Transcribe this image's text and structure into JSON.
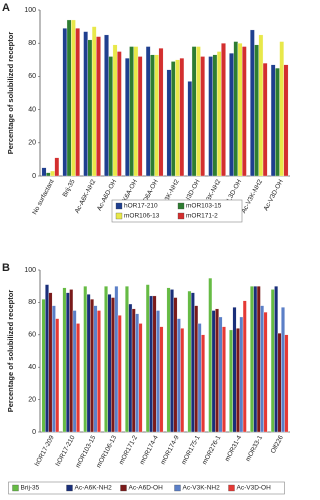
{
  "chart_data": [
    {
      "type": "bar",
      "panel_label": "A",
      "ylabel": "Percentage of solubilized receptor",
      "categories": [
        "No surfactant",
        "Brij-35",
        "Ac-A6K-NH2",
        "Ac-A6D-OH",
        "Ac-K6A-OH",
        "Ac-D6A-OH",
        "Ac-I3K-NH2",
        "Ac-I3D-OH",
        "Ac-L3K-NH2",
        "Ac-L3D-OH",
        "Ac-V3K-NH2",
        "Ac-V3D-OH"
      ],
      "series": [
        {
          "name": "hOR17-210",
          "color": "#1f3f8f",
          "values": [
            5,
            89,
            87,
            85,
            71,
            78,
            64,
            57,
            72,
            74,
            88,
            67
          ]
        },
        {
          "name": "mOR103-15",
          "color": "#2e7d32",
          "values": [
            2,
            94,
            82,
            72,
            78,
            73,
            69,
            78,
            73,
            81,
            79,
            65
          ]
        },
        {
          "name": "mOR106-13",
          "color": "#e8e84a",
          "values": [
            3,
            94,
            90,
            79,
            78,
            73,
            70,
            78,
            75,
            80,
            85,
            81
          ]
        },
        {
          "name": "mOR171-2",
          "color": "#d32f2f",
          "values": [
            11,
            89,
            84,
            75,
            72,
            77,
            71,
            72,
            80,
            78,
            68,
            67
          ]
        }
      ],
      "ylim": [
        0,
        100
      ],
      "yticks": [
        0,
        20,
        40,
        60,
        80,
        100
      ],
      "grid": false,
      "legend": "bottom"
    },
    {
      "type": "bar",
      "panel_label": "B",
      "ylabel": "Percentage of solubilized receptor",
      "categories": [
        "hOR17-209",
        "hOR17-210",
        "mOR103-15",
        "mOR106-13",
        "mOR171-2",
        "mOR174-4",
        "mOR174-9",
        "mOR175-1",
        "mOR276-1",
        "mOR31-4",
        "mOR33-1",
        "Olf226"
      ],
      "series": [
        {
          "name": "Brij-35",
          "color": "#66bb44",
          "values": [
            82,
            89,
            90,
            90,
            90,
            91,
            89,
            87,
            95,
            63,
            90,
            88
          ]
        },
        {
          "name": "Ac-A6K-NH2",
          "color": "#1a2f7a",
          "values": [
            91,
            86,
            85,
            85,
            79,
            84,
            88,
            86,
            75,
            77,
            90,
            90
          ]
        },
        {
          "name": "Ac-A6D-OH",
          "color": "#7a1a1a",
          "values": [
            86,
            88,
            82,
            83,
            76,
            84,
            83,
            78,
            76,
            64,
            90,
            61
          ]
        },
        {
          "name": "Ac-V3K-NH2",
          "color": "#5b7fc7",
          "values": [
            78,
            75,
            78,
            90,
            73,
            75,
            70,
            67,
            71,
            71,
            78,
            77
          ]
        },
        {
          "name": "Ac-V3D-OH",
          "color": "#e53935",
          "values": [
            70,
            67,
            75,
            72,
            67,
            65,
            64,
            60,
            65,
            81,
            74,
            60
          ]
        }
      ],
      "ylim": [
        0,
        100
      ],
      "yticks": [
        0,
        20,
        40,
        60,
        80,
        100
      ],
      "grid": false,
      "legend": "bottom"
    }
  ]
}
